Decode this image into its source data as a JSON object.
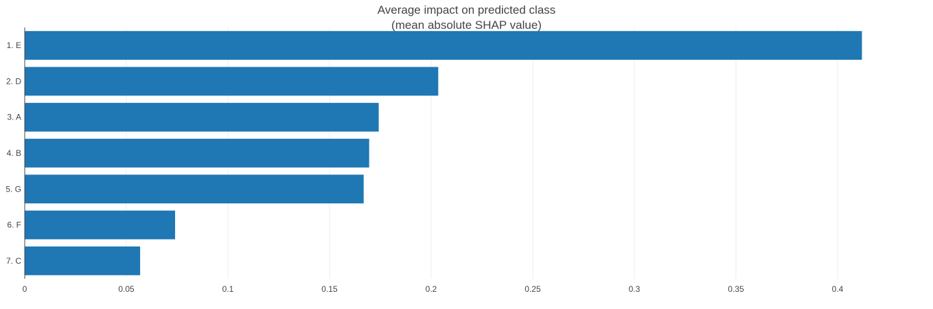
{
  "chart_data": {
    "type": "bar",
    "orientation": "horizontal",
    "title": "Average impact on predicted class",
    "subtitle": "(mean absolute SHAP value)",
    "categories": [
      "1. E",
      "2. D",
      "3. A",
      "4. B",
      "5. G",
      "6. F",
      "7. C"
    ],
    "values": [
      0.412,
      0.2035,
      0.1742,
      0.1695,
      0.1668,
      0.074,
      0.0568
    ],
    "x_ticks": [
      0,
      0.05,
      0.1,
      0.15,
      0.2,
      0.25,
      0.3,
      0.35,
      0.4
    ],
    "x_tick_labels": [
      "0",
      "0.05",
      "0.1",
      "0.15",
      "0.2",
      "0.25",
      "0.3",
      "0.35",
      "0.4"
    ],
    "xlim": [
      0,
      0.4392
    ],
    "xlabel": "",
    "ylabel": "",
    "grid": "vertical",
    "bar_color": "#1f77b4",
    "text_color": "#444444",
    "grid_color": "#eeeeee"
  }
}
